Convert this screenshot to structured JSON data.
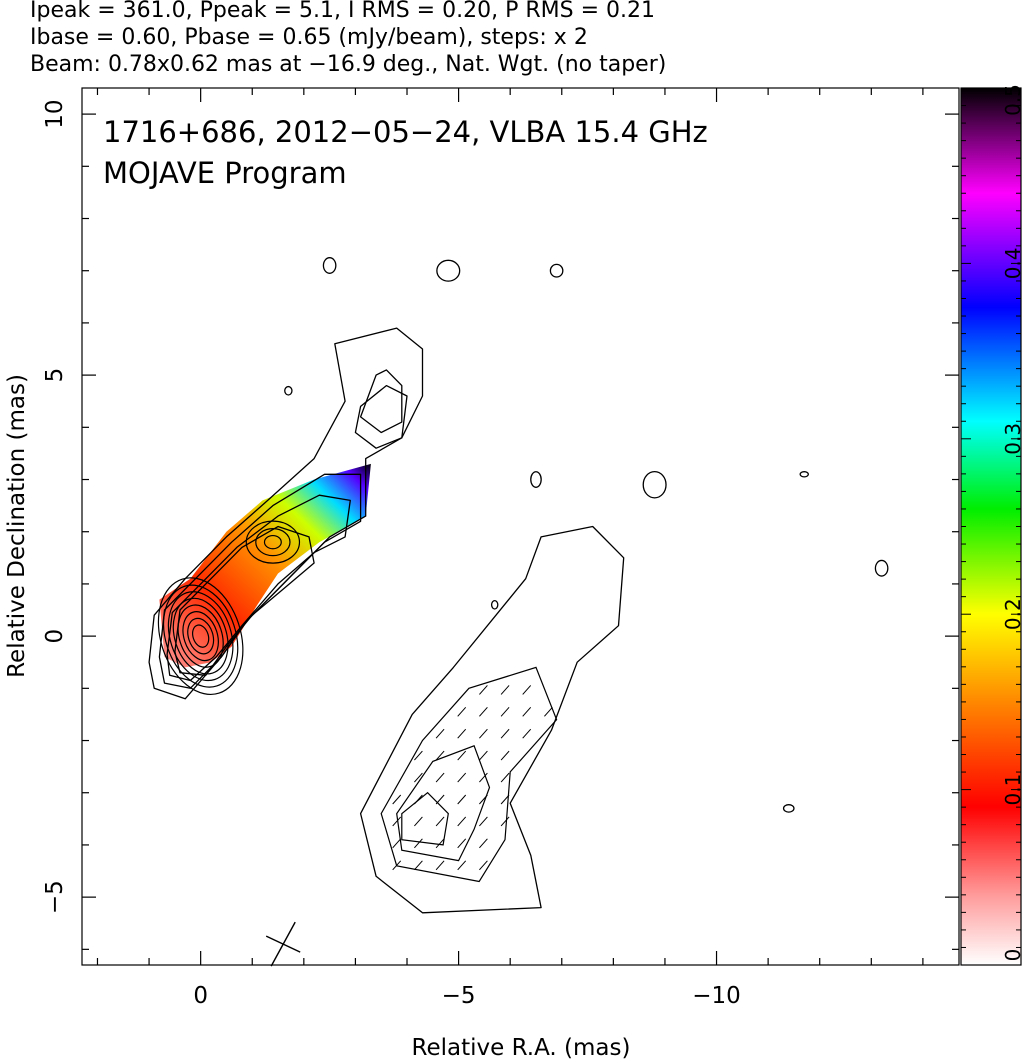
{
  "header": {
    "line1": "Ipeak = 361.0, Ppeak = 5.1, I RMS = 0.20, P RMS = 0.21",
    "line2": "Ibase = 0.60, Pbase = 0.65 (mJy/beam), steps: x 2",
    "line3": "Beam: 0.78x0.62 mas at −16.9 deg., Nat. Wgt. (no taper)"
  },
  "inset": {
    "title": "1716+686, 2012−05−24, VLBA 15.4 GHz",
    "subtitle": "MOJAVE Program"
  },
  "chart_data": {
    "type": "heatmap",
    "xlabel": "Relative R.A. (mas)",
    "ylabel": "Relative Declination (mas)",
    "xlim": [
      2.3,
      -14.7
    ],
    "ylim": [
      -6.3,
      10.5
    ],
    "x_ticks": [
      0,
      -5,
      -10
    ],
    "x_tick_labels": [
      "0",
      "−5",
      "−10"
    ],
    "y_ticks": [
      -5,
      0,
      5,
      10
    ],
    "y_tick_labels": [
      "−5",
      "0",
      "5",
      "10"
    ],
    "colorbar": {
      "range": [
        0,
        0.5
      ],
      "ticks": [
        0,
        0.1,
        0.2,
        0.3,
        0.4,
        0.5
      ],
      "tick_labels": [
        "0",
        "0.1",
        "0.2",
        "0.3",
        "0.4",
        "0.5"
      ],
      "colors": [
        "#ffffff",
        "#ff8888",
        "#ff0000",
        "#ff8800",
        "#ffff00",
        "#00ff00",
        "#00ffff",
        "#0000ff",
        "#ff00ff",
        "#000000"
      ]
    },
    "core": {
      "x": 0,
      "y": 0
    },
    "knot": {
      "x": -1.4,
      "y": 1.8
    },
    "beam": {
      "major_mas": 0.78,
      "minor_mas": 0.62,
      "pa_deg": -16.9,
      "x": -1.6,
      "y": -5.9
    },
    "contours": [
      {
        "kind": "positive",
        "points": [
          [
            1.0,
            -0.5
          ],
          [
            0.9,
            0.4
          ],
          [
            0.3,
            1.1
          ],
          [
            -0.5,
            1.9
          ],
          [
            -1.3,
            2.6
          ],
          [
            -2.2,
            3.4
          ],
          [
            -2.8,
            4.5
          ],
          [
            -2.6,
            5.6
          ],
          [
            -3.8,
            5.9
          ],
          [
            -4.3,
            5.5
          ],
          [
            -4.3,
            4.6
          ],
          [
            -3.9,
            3.8
          ],
          [
            -3.2,
            3.4
          ],
          [
            -3.2,
            2.3
          ],
          [
            -2.5,
            1.9
          ],
          [
            -1.8,
            1.2
          ],
          [
            -0.9,
            0.3
          ],
          [
            -0.4,
            -0.4
          ],
          [
            0.3,
            -1.2
          ],
          [
            0.9,
            -1.0
          ]
        ]
      },
      {
        "kind": "positive",
        "points": [
          [
            0.8,
            -0.4
          ],
          [
            0.7,
            0.5
          ],
          [
            0.1,
            1.1
          ],
          [
            -0.6,
            1.8
          ],
          [
            -1.4,
            2.5
          ],
          [
            -2.4,
            3.1
          ],
          [
            -3.1,
            3.1
          ],
          [
            -3.1,
            2.2
          ],
          [
            -2.4,
            1.8
          ],
          [
            -1.7,
            1.1
          ],
          [
            -0.9,
            0.3
          ],
          [
            -0.4,
            -0.4
          ],
          [
            0.2,
            -1.0
          ],
          [
            0.7,
            -0.9
          ]
        ]
      },
      {
        "kind": "positive",
        "points": [
          [
            0.65,
            -0.35
          ],
          [
            0.55,
            0.45
          ],
          [
            0.0,
            1.0
          ],
          [
            -0.7,
            1.7
          ],
          [
            -1.5,
            2.3
          ],
          [
            -2.3,
            2.7
          ],
          [
            -2.9,
            2.6
          ],
          [
            -2.8,
            1.9
          ],
          [
            -2.2,
            1.6
          ],
          [
            -1.5,
            1.0
          ],
          [
            -0.8,
            0.2
          ],
          [
            -0.3,
            -0.4
          ],
          [
            0.2,
            -0.85
          ],
          [
            0.6,
            -0.75
          ]
        ]
      },
      {
        "kind": "positive",
        "points": [
          [
            0.5,
            -0.3
          ],
          [
            0.4,
            0.5
          ],
          [
            -0.2,
            1.1
          ],
          [
            -0.8,
            1.7
          ],
          [
            -1.5,
            2.1
          ],
          [
            -2.1,
            1.9
          ],
          [
            -2.2,
            1.4
          ],
          [
            -1.6,
            0.9
          ],
          [
            -1.0,
            0.4
          ],
          [
            -0.5,
            -0.2
          ],
          [
            -0.1,
            -0.75
          ],
          [
            0.4,
            -0.7
          ]
        ]
      },
      {
        "kind": "positive",
        "points": [
          [
            -3.1,
            4.4
          ],
          [
            -3.0,
            3.9
          ],
          [
            -3.4,
            3.6
          ],
          [
            -3.9,
            3.8
          ],
          [
            -4.0,
            4.6
          ],
          [
            -3.6,
            4.8
          ]
        ]
      },
      {
        "kind": "positive",
        "points": [
          [
            -3.4,
            5.0
          ],
          [
            -3.1,
            4.2
          ],
          [
            -3.5,
            3.9
          ],
          [
            -3.9,
            4.1
          ],
          [
            -3.9,
            4.8
          ],
          [
            -3.6,
            5.1
          ]
        ]
      },
      {
        "kind": "positive",
        "points": [
          [
            -6.6,
            -5.2
          ],
          [
            -4.3,
            -5.3
          ],
          [
            -3.4,
            -4.6
          ],
          [
            -3.1,
            -3.4
          ],
          [
            -4.1,
            -1.5
          ],
          [
            -4.9,
            -0.6
          ],
          [
            -6.3,
            1.1
          ],
          [
            -6.6,
            1.9
          ],
          [
            -7.6,
            2.1
          ],
          [
            -8.2,
            1.5
          ],
          [
            -8.1,
            0.2
          ],
          [
            -7.3,
            -0.5
          ],
          [
            -6.8,
            -1.8
          ],
          [
            -6.0,
            -3.2
          ],
          [
            -6.4,
            -4.2
          ]
        ]
      }
    ],
    "hatched_regions": [
      {
        "points": [
          [
            -5.4,
            -4.7
          ],
          [
            -3.8,
            -4.4
          ],
          [
            -3.5,
            -3.4
          ],
          [
            -4.3,
            -2.0
          ],
          [
            -5.2,
            -1.0
          ],
          [
            -6.5,
            -0.6
          ],
          [
            -6.9,
            -1.6
          ],
          [
            -6.0,
            -2.6
          ],
          [
            -5.9,
            -3.9
          ]
        ]
      },
      {
        "points": [
          [
            -5.0,
            -4.3
          ],
          [
            -3.9,
            -4.1
          ],
          [
            -3.8,
            -3.4
          ],
          [
            -4.5,
            -2.4
          ],
          [
            -5.3,
            -2.1
          ],
          [
            -5.6,
            -2.9
          ],
          [
            -5.3,
            -3.7
          ]
        ]
      },
      {
        "points": [
          [
            -4.7,
            -4.0
          ],
          [
            -3.9,
            -3.9
          ],
          [
            -3.9,
            -3.4
          ],
          [
            -4.4,
            -3.0
          ],
          [
            -4.8,
            -3.4
          ]
        ]
      }
    ],
    "small_contours": [
      {
        "x": -2.5,
        "y": 7.1,
        "rx": 0.12,
        "ry": 0.15
      },
      {
        "x": -4.8,
        "y": 7.0,
        "rx": 0.22,
        "ry": 0.2
      },
      {
        "x": -6.9,
        "y": 7.0,
        "rx": 0.12,
        "ry": 0.12
      },
      {
        "x": -1.7,
        "y": 4.7,
        "rx": 0.07,
        "ry": 0.08
      },
      {
        "x": -6.5,
        "y": 3.0,
        "rx": 0.1,
        "ry": 0.15
      },
      {
        "x": -8.8,
        "y": 2.9,
        "rx": 0.22,
        "ry": 0.25
      },
      {
        "x": -11.7,
        "y": 3.1,
        "rx": 0.08,
        "ry": 0.05
      },
      {
        "x": -13.2,
        "y": 1.3,
        "rx": 0.12,
        "ry": 0.15
      },
      {
        "x": -5.7,
        "y": 0.6,
        "rx": 0.06,
        "ry": 0.08
      },
      {
        "x": -11.4,
        "y": -3.3,
        "rx": 0.1,
        "ry": 0.07
      }
    ]
  }
}
